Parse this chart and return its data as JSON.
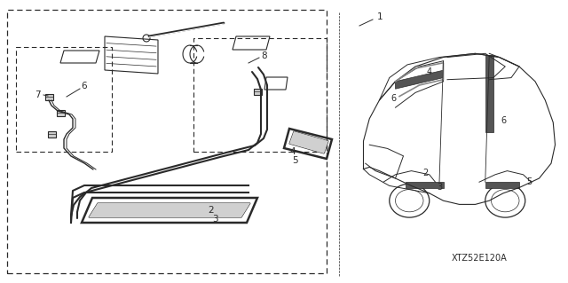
{
  "bg_color": "#ffffff",
  "lc": "#2a2a2a",
  "title_code": "XTZ52E120A",
  "figsize": [
    6.4,
    3.19
  ],
  "dpi": 100
}
